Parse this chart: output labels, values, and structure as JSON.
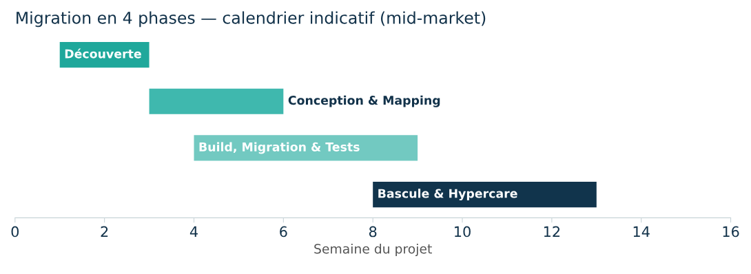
{
  "chart_data": {
    "type": "bar",
    "orientation": "horizontal",
    "title": "Migration en 4 phases — calendrier indicatif (mid-market)",
    "xlabel": "Semaine du projet",
    "categories": [
      "Découverte",
      "Conception & Mapping",
      "Build, Migration & Tests",
      "Bascule & Hypercare"
    ],
    "base": [
      1,
      3,
      4,
      8
    ],
    "values": [
      2,
      3,
      5,
      5
    ],
    "colors": [
      "#1fa89b",
      "#3fb8ae",
      "#72c9c1",
      "#11344c"
    ],
    "xlim": [
      0,
      16
    ],
    "xticks": [
      0,
      2,
      4,
      6,
      8,
      10,
      12,
      14,
      16
    ],
    "tick_labels": "x",
    "grid": false,
    "legend": false
  }
}
